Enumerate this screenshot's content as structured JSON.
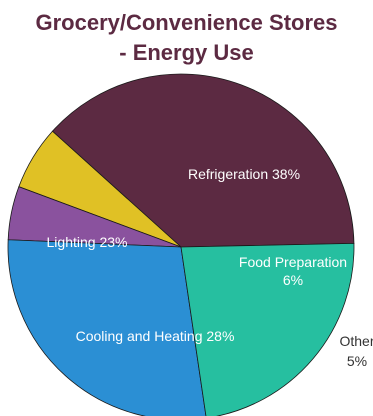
{
  "chart_data": {
    "type": "pie",
    "title": "Grocery/Convenience Stores",
    "subtitle": "- Energy Use",
    "start_angle_deg": 1.2,
    "slices": [
      {
        "label": "Refrigeration 38%",
        "value": 38,
        "color": "#5c2a42",
        "text_color": "#ffffff"
      },
      {
        "label": "Food Preparation",
        "label2": "6%",
        "value": 6,
        "color": "#e0c125",
        "text_color": "#ffffff"
      },
      {
        "label": "Other",
        "label2": "5%",
        "value": 5,
        "color": "#8a529e",
        "text_color": "#333333",
        "outside": true
      },
      {
        "label": "Cooling and Heating 28%",
        "value": 28,
        "color": "#2b8fd4",
        "text_color": "#ffffff"
      },
      {
        "label": "Lighting 23%",
        "value": 23,
        "color": "#26bfa0",
        "text_color": "#ffffff"
      }
    ],
    "stroke_color": "#1a1a1a"
  }
}
